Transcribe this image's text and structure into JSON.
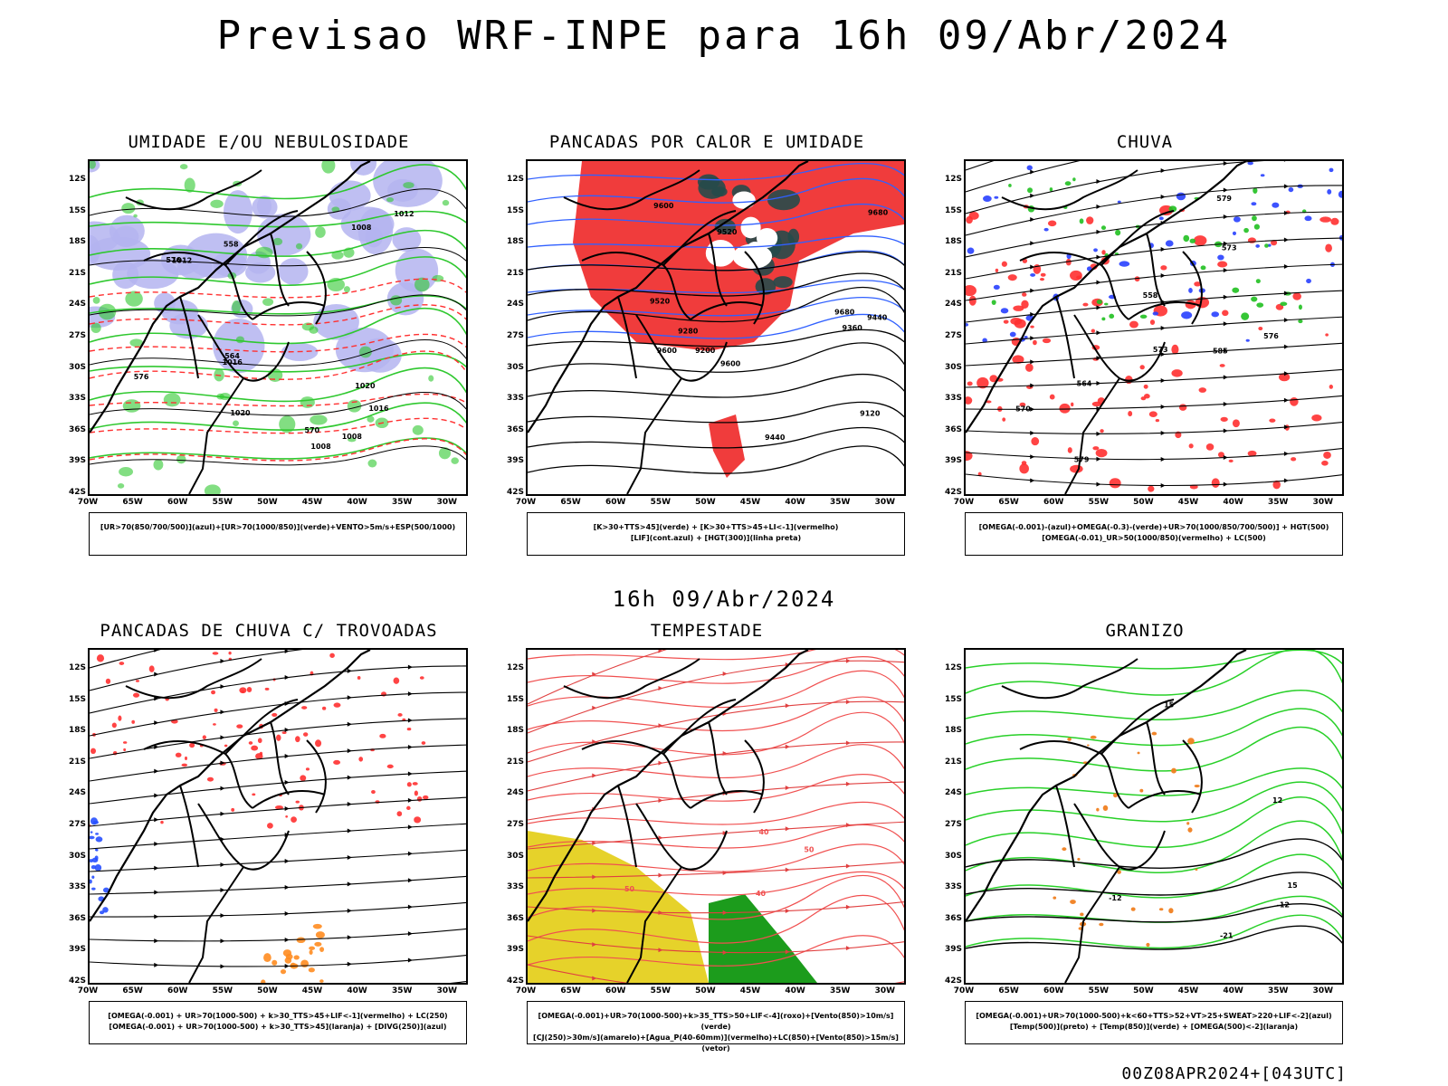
{
  "title": "Previsao WRF-INPE  para 16h 09/Abr/2024",
  "mid_date": "16h 09/Abr/2024",
  "footer": "00Z08APR2024+[043UTC]",
  "lat_ticks": [
    "12S",
    "15S",
    "18S",
    "21S",
    "24S",
    "27S",
    "30S",
    "33S",
    "36S",
    "39S",
    "42S"
  ],
  "lon_ticks": [
    "70W",
    "65W",
    "60W",
    "55W",
    "50W",
    "45W",
    "40W",
    "35W",
    "30W"
  ],
  "panels": [
    {
      "title": "UMIDADE E/OU NEBULOSIDADE",
      "legend": [
        "[UR>70(850/700/500)](azul)+[UR>70(1000/850)](verde)+VENTO>5m/s+ESP(500/1000)"
      ],
      "contour_labels": [
        "1008",
        "1008",
        "1008",
        "1012",
        "1012",
        "1016",
        "1016",
        "1020",
        "1020",
        "576",
        "576",
        "570",
        "564",
        "558"
      ],
      "colors": {
        "blue_fill": "#b4b4f0",
        "green": "#2fc82f",
        "red": "#ff3030"
      }
    },
    {
      "title": "PANCADAS POR CALOR E UMIDADE",
      "legend": [
        "[K>30+TTS>45](verde) + [K>30+TTS>45+LI<-1](vermelho)",
        "[LIF](cont.azul) + [HGT(300)](linha preta)"
      ],
      "contour_labels": [
        "9680",
        "9680",
        "9600",
        "9600",
        "9600",
        "9520",
        "9520",
        "9440",
        "9440",
        "9360",
        "9280",
        "9200",
        "9120"
      ],
      "colors": {
        "red": "#f03c3c",
        "dark": "#264a4a",
        "blue": "#3060ff"
      }
    },
    {
      "title": "CHUVA",
      "legend": [
        "[OMEGA(-0.001)-(azul)+OMEGA(-0.3)-(verde)+UR>70(1000/850/700/500)] + HGT(500)",
        "[OMEGA(-0.01)_UR>50(1000/850)(vermelho) + LC(500)"
      ],
      "contour_labels": [
        "585",
        "579",
        "579",
        "576",
        "573",
        "570",
        "573",
        "564",
        "558"
      ],
      "colors": {
        "red": "#ff3030",
        "blue": "#2840ff",
        "green": "#20c020"
      }
    },
    {
      "title": "PANCADAS DE CHUVA C/ TROVOADAS",
      "legend": [
        "[OMEGA(-0.001) + UR>70(1000-500) + k>30_TTS>45+LIF<-1](vermelho) + LC(250)",
        "[OMEGA(-0.001) + UR>70(1000-500) + k>30_TTS>45](laranja) + [DIVG(250)](azul)"
      ],
      "contour_labels": [],
      "colors": {
        "red": "#ff3030",
        "orange": "#ff8c20",
        "blue": "#2850ff"
      }
    },
    {
      "title": "TEMPESTADE",
      "legend": [
        "[OMEGA(-0.001)+UR>70(1000-500)+k>35_TTS>50+LIF<-4](roxo)+[Vento(850)>10m/s](verde)",
        "[CJ(250)>30m/s](amarelo)+[Agua_P(40-60mm)](vermelho)+LC(850)+[Vento(850)>15m/s](vetor)"
      ],
      "contour_labels": [
        "50",
        "40",
        "50",
        "40"
      ],
      "colors": {
        "yellow": "#e6d22a",
        "green": "#1c9c1c",
        "red": "#f05050"
      }
    },
    {
      "title": "GRANIZO",
      "legend": [
        "[OMEGA(-0.001)+UR>70(1000-500)+k<60+TTS>52+VT>25+SWEAT>220+LIF<-2](azul)",
        "[Temp(500)](preto) + [Temp(850)](verde) + [OMEGA(500)<-2](laranja)"
      ],
      "contour_labels": [
        "-12",
        "-12",
        "-21",
        "15",
        "12",
        "15"
      ],
      "colors": {
        "green": "#28d028",
        "orange": "#f08020"
      }
    }
  ]
}
